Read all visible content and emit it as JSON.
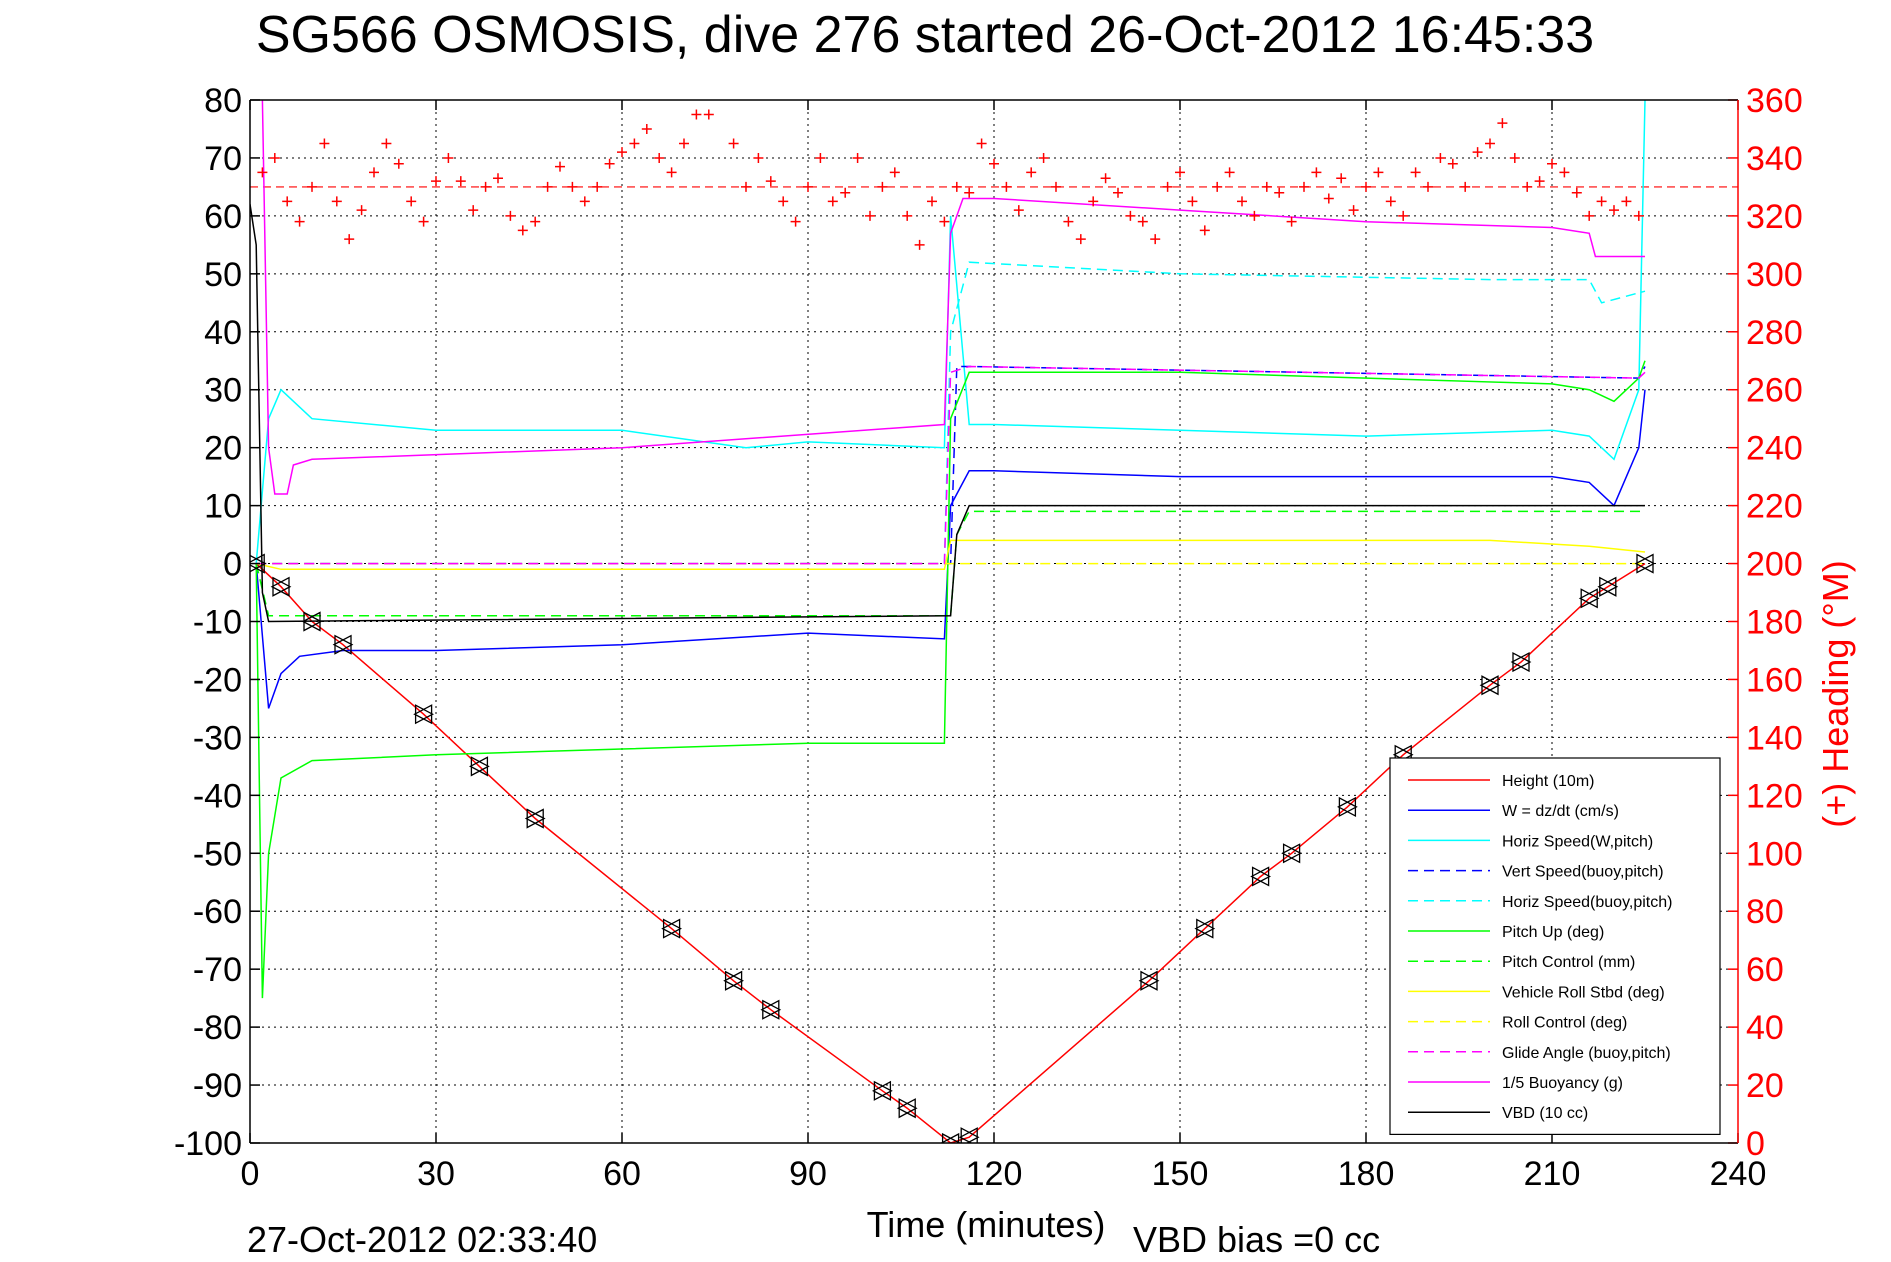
{
  "chart_data": {
    "type": "line",
    "title": "SG566 OSMOSIS, dive 276 started 26-Oct-2012 16:45:33",
    "xlabel": "Time (minutes)",
    "ylabel": "",
    "y2label": "(+) Heading (°M)",
    "xlim": [
      0,
      240
    ],
    "ylim": [
      -100,
      80
    ],
    "y2lim": [
      0,
      360
    ],
    "xticks": [
      "0",
      "30",
      "60",
      "90",
      "120",
      "150",
      "180",
      "210",
      "240"
    ],
    "yticks": [
      "80",
      "70",
      "60",
      "50",
      "40",
      "30",
      "20",
      "10",
      "0",
      "-10",
      "-20",
      "-30",
      "-40",
      "-50",
      "-60",
      "-70",
      "-80",
      "-90",
      "-100"
    ],
    "y2ticks": [
      "360",
      "340",
      "320",
      "300",
      "280",
      "260",
      "240",
      "220",
      "200",
      "180",
      "160",
      "140",
      "120",
      "100",
      "80",
      "60",
      "40",
      "20",
      "0"
    ],
    "grid": true,
    "legend_position": "bottom-right",
    "footer_left": "27-Oct-2012 02:33:40",
    "footer_right": "VBD bias =0 cc",
    "series": [
      {
        "name": "Height (10m)",
        "color": "#ff0000",
        "style": "solid",
        "x": [
          1,
          5,
          10,
          15,
          28,
          37,
          46,
          68,
          78,
          84,
          102,
          106,
          113,
          116,
          145,
          154,
          163,
          168,
          177,
          186,
          200,
          205,
          216,
          219,
          225
        ],
        "y": [
          0,
          -4,
          -10,
          -14,
          -26,
          -35,
          -44,
          -63,
          -72,
          -77,
          -91,
          -94,
          -100,
          -99,
          -72,
          -63,
          -54,
          -50,
          -42,
          -33,
          -21,
          -17,
          -6,
          -4,
          0
        ]
      },
      {
        "name": "W = dz/dt (cm/s)",
        "color": "#0000ff",
        "style": "solid",
        "x": [
          1,
          3,
          5,
          8,
          15,
          30,
          60,
          90,
          112,
          113,
          116,
          120,
          150,
          180,
          210,
          216,
          220,
          224,
          225
        ],
        "y": [
          0,
          -25,
          -19,
          -16,
          -15,
          -15,
          -14,
          -12,
          -13,
          10,
          16,
          16,
          15,
          15,
          15,
          14,
          10,
          20,
          30
        ]
      },
      {
        "name": "Horiz Speed(W,pitch)",
        "color": "#00ffff",
        "style": "solid",
        "x": [
          1,
          3,
          5,
          10,
          30,
          60,
          80,
          90,
          112,
          113,
          116,
          120,
          150,
          180,
          210,
          216,
          220,
          224,
          225
        ],
        "y": [
          0,
          25,
          30,
          25,
          23,
          23,
          20,
          21,
          20,
          60,
          24,
          24,
          23,
          22,
          23,
          22,
          18,
          30,
          80
        ]
      },
      {
        "name": "Vert Speed(buoy,pitch)",
        "color": "#0000ff",
        "style": "dashed",
        "x": [
          1,
          8,
          113,
          114,
          116,
          224,
          225
        ],
        "y": [
          0,
          0,
          0,
          34,
          34,
          32,
          34
        ]
      },
      {
        "name": "Horiz Speed(buoy,pitch)",
        "color": "#00ffff",
        "style": "dashed",
        "x": [
          1,
          8,
          112,
          113,
          116,
          150,
          200,
          216,
          218,
          225
        ],
        "y": [
          0,
          0,
          0,
          40,
          52,
          50,
          49,
          49,
          45,
          47
        ]
      },
      {
        "name": "Pitch Up (deg)",
        "color": "#00ff00",
        "style": "solid",
        "x": [
          1,
          2,
          3,
          5,
          10,
          30,
          60,
          90,
          112,
          113,
          116,
          120,
          150,
          180,
          210,
          216,
          220,
          224,
          225
        ],
        "y": [
          0,
          -75,
          -50,
          -37,
          -34,
          -33,
          -32,
          -31,
          -31,
          25,
          33,
          33,
          33,
          32,
          31,
          30,
          28,
          32,
          35
        ]
      },
      {
        "name": "Pitch Control (mm)",
        "color": "#00ff00",
        "style": "dashed",
        "x": [
          1,
          3,
          113,
          114,
          116,
          225
        ],
        "y": [
          0,
          -9,
          -9,
          5,
          9,
          9
        ]
      },
      {
        "name": "Vehicle Roll Stbd (deg)",
        "color": "#ffff00",
        "style": "solid",
        "x": [
          1,
          5,
          10,
          60,
          112,
          113,
          116,
          150,
          200,
          216,
          225
        ],
        "y": [
          0,
          -1,
          -1,
          -1,
          -1,
          4,
          4,
          4,
          4,
          3,
          2
        ]
      },
      {
        "name": "Roll Control (deg)",
        "color": "#ffff00",
        "style": "dashed",
        "x": [
          1,
          112,
          225
        ],
        "y": [
          0,
          0,
          0
        ]
      },
      {
        "name": "Glide Angle (buoy,pitch)",
        "color": "#ff00ff",
        "style": "dashed",
        "x": [
          1,
          8,
          112,
          113,
          116,
          224,
          225
        ],
        "y": [
          0,
          0,
          0,
          33,
          34,
          32,
          33
        ]
      },
      {
        "name": "1/5 Buoyancy (g)",
        "color": "#ff00ff",
        "style": "solid",
        "x": [
          2,
          3,
          4,
          6,
          7,
          10,
          60,
          112,
          113,
          115,
          120,
          150,
          180,
          210,
          216,
          217,
          225
        ],
        "y": [
          80,
          20,
          12,
          12,
          17,
          18,
          20,
          24,
          57,
          63,
          63,
          61,
          59,
          58,
          57,
          53,
          53
        ]
      },
      {
        "name": "VBD (10 cc)",
        "color": "#000000",
        "style": "solid",
        "x": [
          0,
          1,
          2,
          3,
          113,
          114,
          116,
          225
        ],
        "y": [
          62,
          55,
          -5,
          -10,
          -9,
          5,
          10,
          10
        ]
      }
    ],
    "heading": {
      "name": "(+) Heading",
      "color": "#ff0000",
      "marker": "+",
      "mean": 330,
      "x": [
        2,
        4,
        6,
        8,
        10,
        12,
        14,
        16,
        18,
        20,
        22,
        24,
        26,
        28,
        30,
        32,
        34,
        36,
        38,
        40,
        42,
        44,
        46,
        48,
        50,
        52,
        54,
        56,
        58,
        60,
        62,
        64,
        66,
        68,
        70,
        72,
        74,
        76,
        78,
        80,
        82,
        84,
        86,
        88,
        90,
        92,
        94,
        96,
        98,
        100,
        102,
        104,
        106,
        108,
        110,
        112,
        114,
        116,
        118,
        120,
        122,
        124,
        126,
        128,
        130,
        132,
        134,
        136,
        138,
        140,
        142,
        144,
        146,
        148,
        150,
        152,
        154,
        156,
        158,
        160,
        162,
        164,
        166,
        168,
        170,
        172,
        174,
        176,
        178,
        180,
        182,
        184,
        186,
        188,
        190,
        192,
        194,
        196,
        198,
        200,
        202,
        204,
        206,
        208,
        210,
        212,
        214,
        216,
        218,
        220,
        222,
        224
      ],
      "y": [
        335,
        340,
        325,
        318,
        330,
        345,
        325,
        312,
        322,
        335,
        345,
        338,
        325,
        318,
        332,
        340,
        332,
        322,
        330,
        333,
        320,
        315,
        318,
        330,
        337,
        330,
        325,
        330,
        338,
        342,
        345,
        350,
        340,
        335,
        345,
        355,
        355,
        362,
        345,
        330,
        340,
        332,
        325,
        318,
        330,
        340,
        325,
        328,
        340,
        320,
        330,
        335,
        320,
        310,
        325,
        318,
        330,
        328,
        345,
        338,
        330,
        322,
        335,
        340,
        330,
        318,
        312,
        325,
        333,
        328,
        320,
        318,
        312,
        330,
        335,
        325,
        315,
        330,
        335,
        325,
        320,
        330,
        328,
        318,
        330,
        335,
        326,
        333,
        322,
        330,
        335,
        325,
        320,
        335,
        330,
        340,
        338,
        330,
        342,
        345,
        352,
        340,
        330,
        332,
        338,
        335,
        328,
        320,
        325,
        322,
        325,
        320
      ]
    }
  }
}
